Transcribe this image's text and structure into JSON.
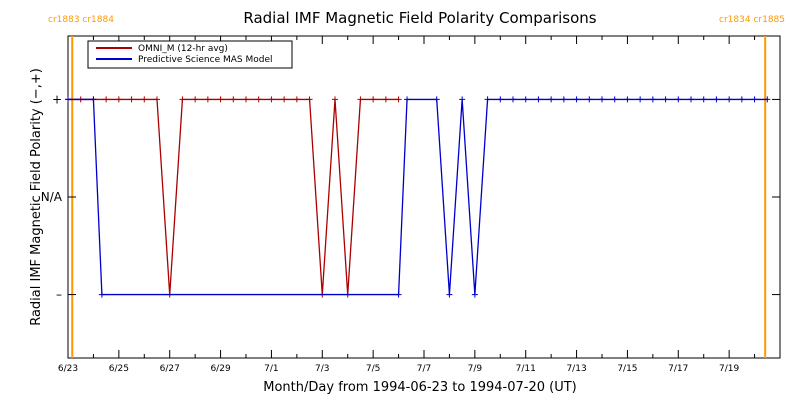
{
  "chart_data": {
    "type": "line",
    "title": "Radial IMF Magnetic Field Polarity Comparisons",
    "xlabel": "Month/Day from 1994-06-23 to 1994-07-20 (UT)",
    "ylabel": "Radial IMF Magnetic Field Polarity (−,+)",
    "xlim": [
      "1994-06-23",
      "1994-07-21"
    ],
    "ylim": [
      -1.65,
      1.65
    ],
    "x_tick_labels": [
      "6/23",
      "6/25",
      "6/27",
      "6/29",
      "7/1",
      "7/3",
      "7/5",
      "7/7",
      "7/9",
      "7/11",
      "7/13",
      "7/15",
      "7/17",
      "7/19"
    ],
    "y_ticks": [
      {
        "value": 1,
        "label": "+"
      },
      {
        "value": 0,
        "label": "N/A"
      },
      {
        "value": -1,
        "label": "–"
      }
    ],
    "grid": false,
    "legend_position": "top-left",
    "carrington_markers": [
      {
        "date": "1994-06-23T04:00",
        "label": "cr1883 cr1884",
        "side": "left",
        "color": "#ff9900"
      },
      {
        "date": "1994-07-20T10:00",
        "label": "cr1834 cr1885",
        "side": "right",
        "color": "#ff9900"
      }
    ],
    "series": [
      {
        "name": "OMNI_M (12-hr avg)",
        "color": "#aa0000",
        "marker": "+",
        "x": [
          "1994-06-23T00:00",
          "1994-06-23T12:00",
          "1994-06-24T00:00",
          "1994-06-24T12:00",
          "1994-06-25T00:00",
          "1994-06-25T12:00",
          "1994-06-26T00:00",
          "1994-06-26T12:00",
          "1994-06-27T00:00",
          "1994-06-27T12:00",
          "1994-06-28T00:00",
          "1994-06-28T12:00",
          "1994-06-29T00:00",
          "1994-06-29T12:00",
          "1994-06-30T00:00",
          "1994-06-30T12:00",
          "1994-07-01T00:00",
          "1994-07-01T12:00",
          "1994-07-02T00:00",
          "1994-07-02T12:00",
          "1994-07-03T00:00",
          "1994-07-03T12:00",
          "1994-07-04T00:00",
          "1994-07-04T12:00",
          "1994-07-05T00:00",
          "1994-07-05T12:00",
          "1994-07-06T00:00"
        ],
        "values": [
          1,
          1,
          1,
          1,
          1,
          1,
          1,
          1,
          -1,
          1,
          1,
          1,
          1,
          1,
          1,
          1,
          1,
          1,
          1,
          1,
          -1,
          1,
          -1,
          1,
          1,
          1,
          1
        ]
      },
      {
        "name": "Predictive Science MAS Model",
        "color": "#0000cc",
        "marker": "+",
        "x": [
          "1994-06-23T00:00",
          "1994-06-24T00:00",
          "1994-06-24T08:00",
          "1994-07-06T00:00",
          "1994-07-06T08:00",
          "1994-07-07T12:00",
          "1994-07-08T00:00",
          "1994-07-08T12:00",
          "1994-07-09T00:00",
          "1994-07-09T12:00",
          "1994-07-10T00:00",
          "1994-07-10T12:00",
          "1994-07-11T00:00",
          "1994-07-11T12:00",
          "1994-07-12T00:00",
          "1994-07-12T12:00",
          "1994-07-13T00:00",
          "1994-07-13T12:00",
          "1994-07-14T00:00",
          "1994-07-14T12:00",
          "1994-07-15T00:00",
          "1994-07-15T12:00",
          "1994-07-16T00:00",
          "1994-07-16T12:00",
          "1994-07-17T00:00",
          "1994-07-17T12:00",
          "1994-07-18T00:00",
          "1994-07-18T12:00",
          "1994-07-19T00:00",
          "1994-07-19T12:00",
          "1994-07-20T00:00",
          "1994-07-20T12:00"
        ],
        "values": [
          1,
          1,
          -1,
          -1,
          1,
          1,
          -1,
          1,
          -1,
          1,
          1,
          1,
          1,
          1,
          1,
          1,
          1,
          1,
          1,
          1,
          1,
          1,
          1,
          1,
          1,
          1,
          1,
          1,
          1,
          1,
          1,
          1
        ]
      }
    ]
  }
}
